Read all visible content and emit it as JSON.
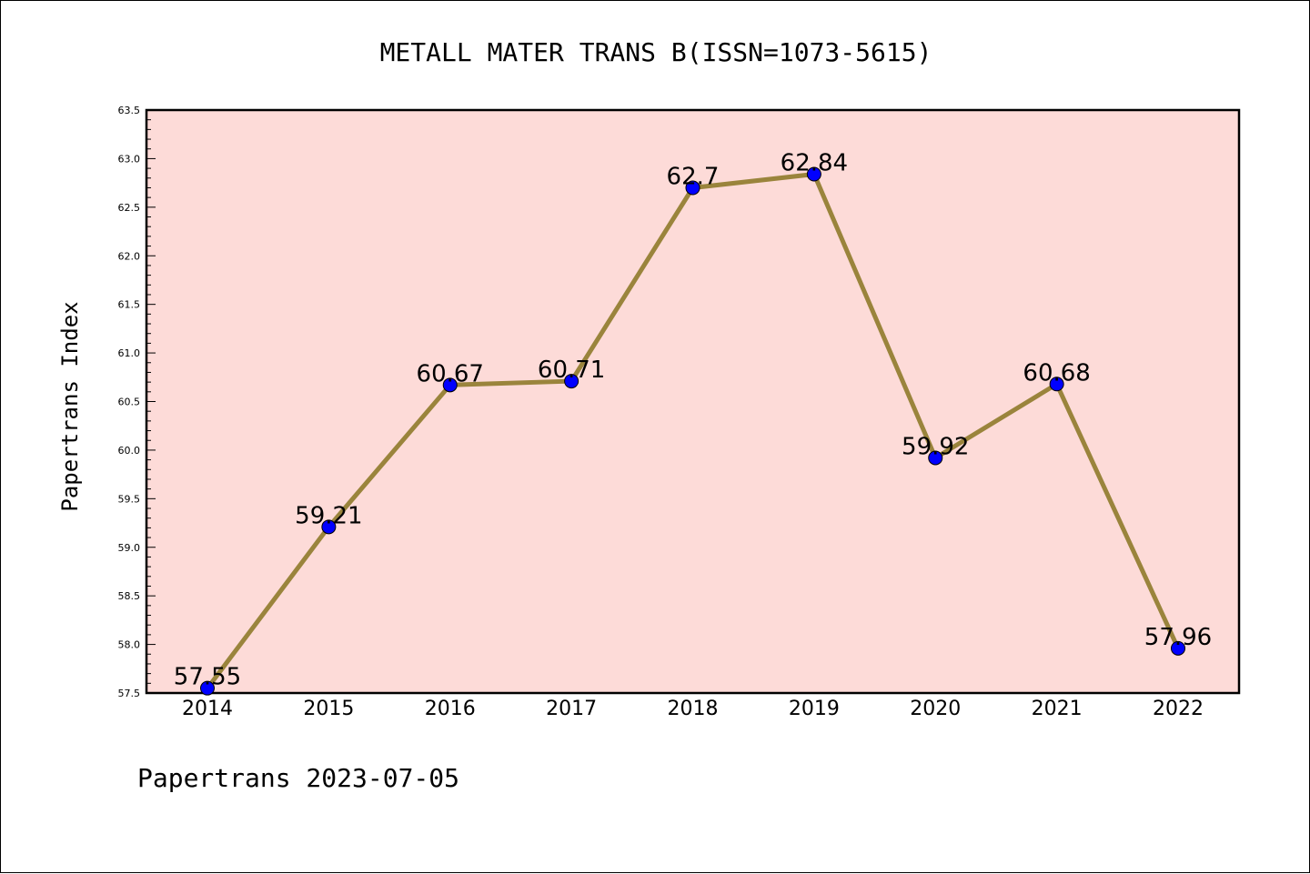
{
  "title": "METALL MATER TRANS B(ISSN=1073-5615)",
  "footer": "Papertrans 2023-07-05",
  "colors": {
    "plot_background": "#fddbd8",
    "line": "#9a843c",
    "marker": "#0000ff",
    "frame": "#000000"
  },
  "chart_data": {
    "type": "line",
    "title": "METALL MATER TRANS B(ISSN=1073-5615)",
    "xlabel": "",
    "ylabel": "Papertrans Index",
    "categories": [
      "2014",
      "2015",
      "2016",
      "2017",
      "2018",
      "2019",
      "2020",
      "2021",
      "2022"
    ],
    "values": [
      57.55,
      59.21,
      60.67,
      60.71,
      62.7,
      62.84,
      59.92,
      60.68,
      57.96
    ],
    "labels": [
      "57.55",
      "59.21",
      "60.67",
      "60.71",
      "62.7",
      "62.84",
      "59.92",
      "60.68",
      "57.96"
    ],
    "ylim": [
      57.5,
      63.5
    ],
    "yticks": [
      "57.5",
      "58.0",
      "58.5",
      "59.0",
      "59.5",
      "60.0",
      "60.5",
      "61.0",
      "61.5",
      "62.0",
      "62.5",
      "63.0",
      "63.5"
    ],
    "grid": false,
    "legend": "none"
  }
}
